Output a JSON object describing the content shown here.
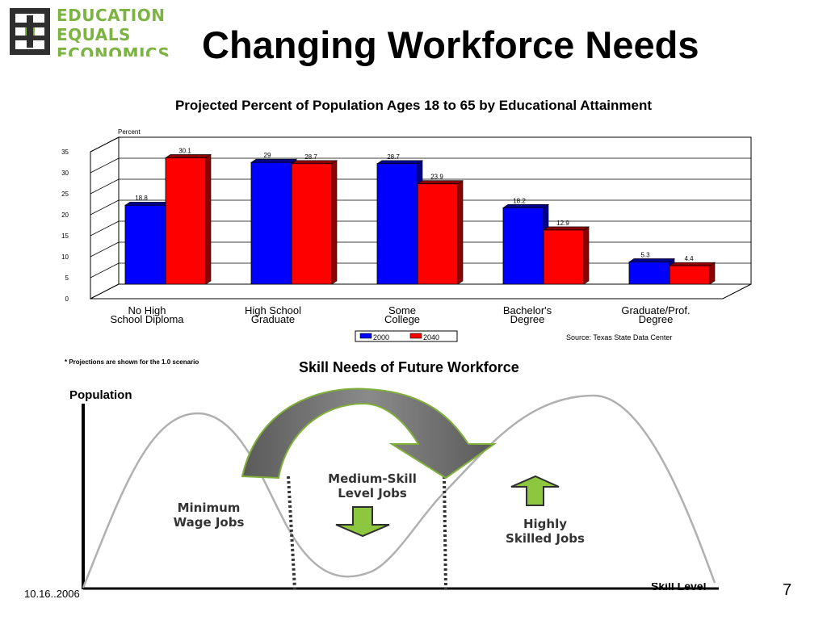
{
  "logo": {
    "lines": [
      "EDUCATION",
      "EQUALS",
      "ECONOMICS"
    ],
    "color": "#7cb342",
    "mark_color": "#2f2f2f"
  },
  "slide": {
    "title": "Changing Workforce Needs",
    "page_number": "7",
    "date": "10.16..2006"
  },
  "chart": {
    "title": "Projected Percent of Population Ages 18 to 65 by Educational Attainment",
    "note": "* Projections are shown for the 1.0 scenario",
    "source": "Source: Texas State Data Center"
  },
  "chart_data": {
    "type": "bar",
    "title": "Projected Percent of Population Ages 18 to 65 by Educational Attainment",
    "ylabel": "Percent",
    "ylim": [
      0,
      35
    ],
    "yticks": [
      0,
      5,
      10,
      15,
      20,
      25,
      30,
      35
    ],
    "grid": true,
    "legend_position": "bottom-center",
    "categories": [
      [
        "No High",
        "School Diploma"
      ],
      [
        "High School",
        "Graduate"
      ],
      [
        "Some",
        "College"
      ],
      [
        "Bachelor's",
        "Degree"
      ],
      [
        "Graduate/Prof.",
        "Degree"
      ]
    ],
    "series": [
      {
        "name": "2000",
        "color": "#0000ff",
        "values": [
          18.8,
          29,
          28.7,
          18.2,
          5.3
        ]
      },
      {
        "name": "2040",
        "color": "#ff0000",
        "values": [
          30.1,
          28.7,
          23.9,
          12.9,
          4.4
        ]
      }
    ]
  },
  "diagram": {
    "title": "Skill Needs of Future Workforce",
    "y_axis_label": "Population",
    "x_axis_label": "Skill Level",
    "labels": {
      "minimum": [
        "Minimum",
        "Wage Jobs"
      ],
      "medium": [
        "Medium-Skill",
        "Level Jobs"
      ],
      "high": [
        "Highly",
        "Skilled Jobs"
      ]
    },
    "arrow_color": "#8dc63f",
    "curve_color": "#b0b0b0",
    "shift_arrow_color": "#6e6e6e"
  }
}
